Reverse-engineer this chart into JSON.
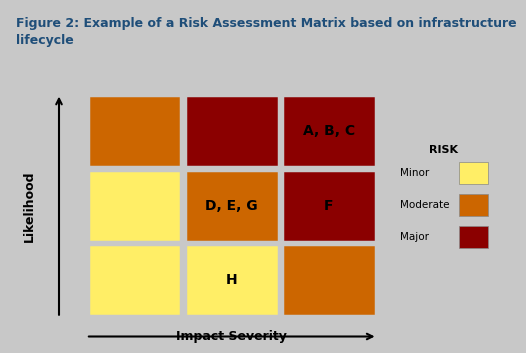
{
  "title_line1": "Figure 2: Example of a Risk Assessment Matrix based on infrastructure",
  "title_line2": "lifecycle",
  "title_color": "#1F4E79",
  "background_color": "#C8C8C8",
  "title_bg_color": "#FFFFFF",
  "header_bar_color": "#111111",
  "grid": {
    "rows": 3,
    "cols": 3,
    "colors": [
      [
        "#CC6600",
        "#8B0000",
        "#8B0000"
      ],
      [
        "#FFEE66",
        "#CC6600",
        "#8B0000"
      ],
      [
        "#FFEE66",
        "#FFEE66",
        "#CC6600"
      ]
    ],
    "labels": [
      [
        "",
        "",
        "A, B, C"
      ],
      [
        "",
        "D, E, G",
        "F"
      ],
      [
        "",
        "H",
        ""
      ]
    ]
  },
  "ylabel": "Likelihood",
  "xlabel": "Impact Severity",
  "legend_title": "RISK",
  "legend_items": [
    {
      "label": "Minor",
      "color": "#FFEE66"
    },
    {
      "label": "Moderate",
      "color": "#CC6600"
    },
    {
      "label": "Major",
      "color": "#8B0000"
    }
  ],
  "label_fontsize": 10,
  "axis_label_fontsize": 9,
  "title_fontsize": 9,
  "legend_title_fontsize": 8,
  "legend_item_fontsize": 7.5
}
